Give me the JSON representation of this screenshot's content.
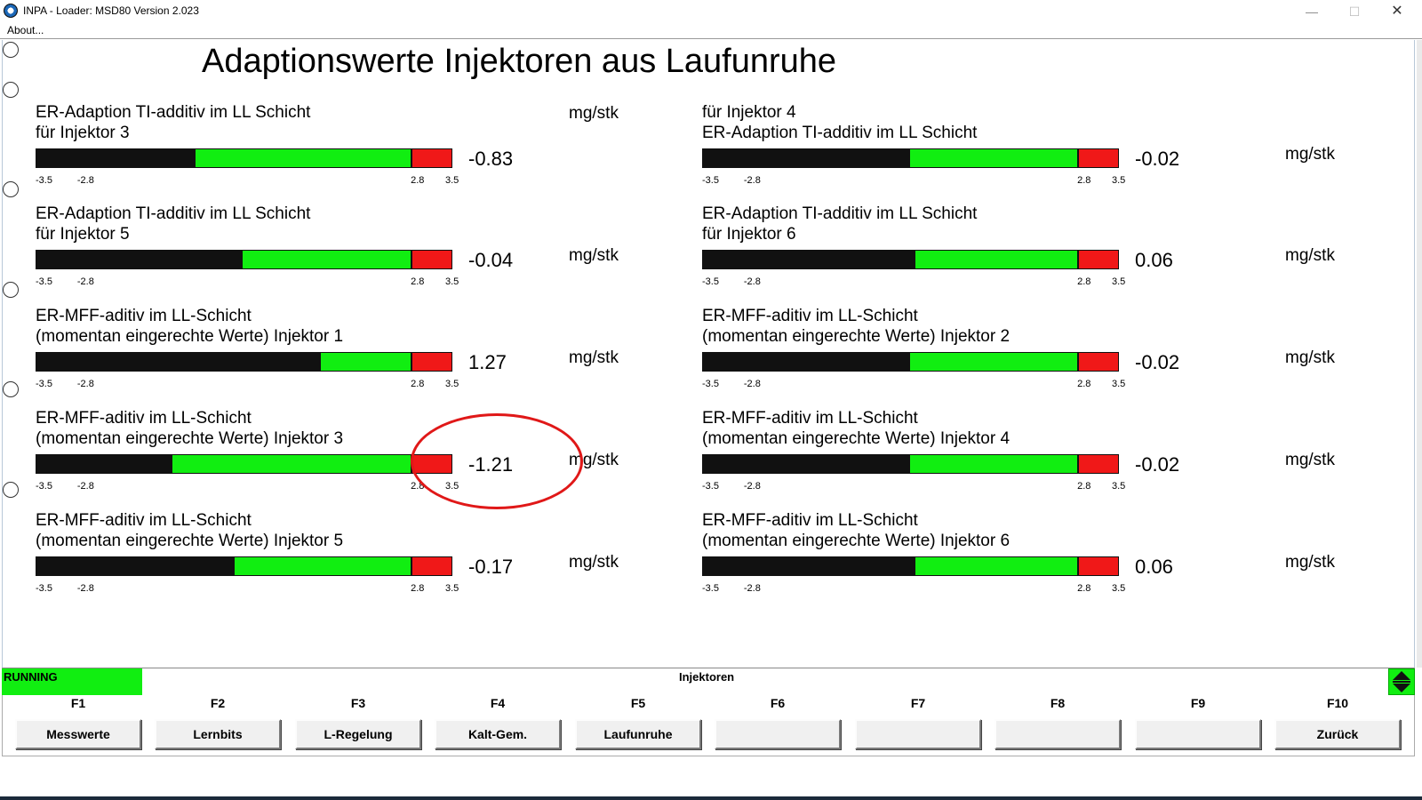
{
  "window": {
    "title": "INPA - Loader:  MSD80 Version 2.023",
    "minimize_glyph": "—",
    "maximize_glyph": "☐",
    "close_glyph": "✕"
  },
  "menu": {
    "about": "About..."
  },
  "page": {
    "title": "Adaptionswerte Injektoren aus Laufunruhe"
  },
  "scale": {
    "min": "-3.5",
    "low": "-2.8",
    "high": "2.8",
    "max": "3.5",
    "range": [
      -3.5,
      3.5
    ]
  },
  "gauges": [
    {
      "line1": "ER-Adaption TI-additiv im LL Schicht",
      "line2": "für Injektor 3",
      "value": "-0.83",
      "numeric": -0.83,
      "unit": "mg/stk"
    },
    {
      "line1": "für Injektor 4",
      "line2": "ER-Adaption TI-additiv im LL Schicht",
      "value": "-0.02",
      "numeric": -0.02,
      "unit": "mg/stk"
    },
    {
      "line1": "ER-Adaption TI-additiv im LL Schicht",
      "line2": "für Injektor 5",
      "value": "-0.04",
      "numeric": -0.04,
      "unit": "mg/stk"
    },
    {
      "line1": "ER-Adaption TI-additiv im LL Schicht",
      "line2": "für Injektor 6",
      "value": "0.06",
      "numeric": 0.06,
      "unit": "mg/stk"
    },
    {
      "line1": "ER-MFF-aditiv im LL-Schicht",
      "line2": "(momentan eingerechte Werte) Injektor 1",
      "value": "1.27",
      "numeric": 1.27,
      "unit": "mg/stk"
    },
    {
      "line1": "ER-MFF-aditiv im LL-Schicht",
      "line2": "(momentan eingerechte Werte) Injektor 2",
      "value": "-0.02",
      "numeric": -0.02,
      "unit": "mg/stk"
    },
    {
      "line1": "ER-MFF-aditiv im LL-Schicht",
      "line2": "(momentan eingerechte Werte) Injektor 3",
      "value": "-1.21",
      "numeric": -1.21,
      "unit": "mg/stk"
    },
    {
      "line1": "ER-MFF-aditiv im LL-Schicht",
      "line2": "(momentan eingerechte Werte) Injektor 4",
      "value": "-0.02",
      "numeric": -0.02,
      "unit": "mg/stk"
    },
    {
      "line1": "ER-MFF-aditiv im LL-Schicht",
      "line2": "(momentan eingerechte Werte) Injektor 5",
      "value": "-0.17",
      "numeric": -0.17,
      "unit": "mg/stk"
    },
    {
      "line1": "ER-MFF-aditiv im LL-Schicht",
      "line2": "(momentan eingerechte Werte) Injektor 6",
      "value": "0.06",
      "numeric": 0.06,
      "unit": "mg/stk"
    }
  ],
  "status": {
    "state": "RUNNING",
    "section": "Injektoren"
  },
  "function_keys": [
    {
      "key": "F1",
      "label": "Messwerte"
    },
    {
      "key": "F2",
      "label": "Lernbits"
    },
    {
      "key": "F3",
      "label": "L-Regelung"
    },
    {
      "key": "F4",
      "label": "Kalt-Gem."
    },
    {
      "key": "F5",
      "label": "Laufunruhe"
    },
    {
      "key": "F6",
      "label": ""
    },
    {
      "key": "F7",
      "label": ""
    },
    {
      "key": "F8",
      "label": ""
    },
    {
      "key": "F9",
      "label": ""
    },
    {
      "key": "F10",
      "label": "Zurück"
    }
  ],
  "colors": {
    "gauge_ok": "#11ee11",
    "gauge_limit": "#f01818",
    "gauge_fill": "#111111",
    "status_running": "#11ee11",
    "annotation": "#e01818"
  }
}
